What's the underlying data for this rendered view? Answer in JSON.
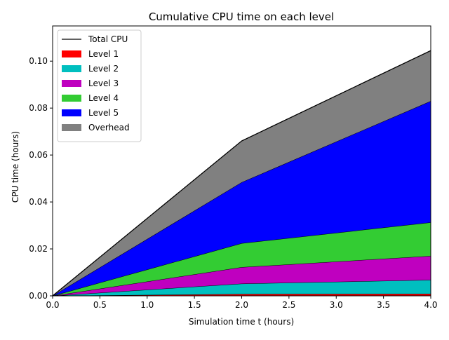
{
  "chart_data": {
    "type": "area",
    "title": "Cumulative CPU time on each level",
    "xlabel": "Simulation time t (hours)",
    "ylabel": "CPU time (hours)",
    "xlim": [
      0,
      4
    ],
    "ylim": [
      0,
      0.115
    ],
    "x": [
      0,
      2,
      4
    ],
    "xticks": [
      "0.0",
      "0.5",
      "1.0",
      "1.5",
      "2.0",
      "2.5",
      "3.0",
      "3.5",
      "4.0"
    ],
    "yticks": [
      "0.00",
      "0.02",
      "0.04",
      "0.06",
      "0.08",
      "0.10"
    ],
    "stacked": true,
    "grid": false,
    "legend_position": "top-left",
    "total": {
      "name": "Total CPU",
      "color": "#000000",
      "values": [
        0,
        0.066,
        0.1045
      ]
    },
    "series": [
      {
        "name": "Level 1",
        "color": "#ff0000",
        "values": [
          0,
          0.0008,
          0.0009
        ]
      },
      {
        "name": "Level 2",
        "color": "#00bfbf",
        "values": [
          0,
          0.0044,
          0.0059
        ]
      },
      {
        "name": "Level 3",
        "color": "#bf00bf",
        "values": [
          0,
          0.007,
          0.0102
        ]
      },
      {
        "name": "Level 4",
        "color": "#33cc33",
        "values": [
          0,
          0.0102,
          0.0143
        ]
      },
      {
        "name": "Level 5",
        "color": "#0000ff",
        "values": [
          0,
          0.026,
          0.0517
        ]
      },
      {
        "name": "Overhead",
        "color": "#808080",
        "values": [
          0,
          0.0176,
          0.0215
        ]
      }
    ]
  }
}
